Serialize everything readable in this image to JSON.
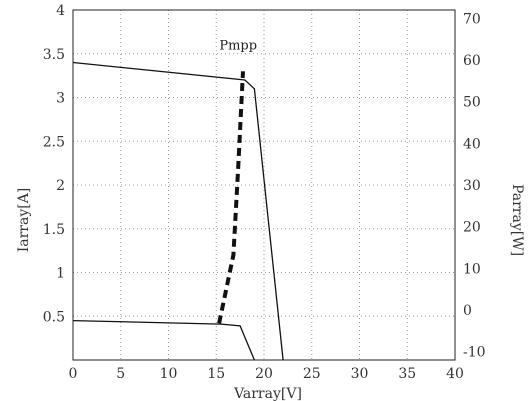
{
  "chart_data": {
    "type": "line",
    "xlabel": "Varray[V]",
    "ylabel_left": "Iarray[A]",
    "ylabel_right": "Parray[W]",
    "xlim": [
      0,
      40
    ],
    "ylim_left": [
      0,
      4
    ],
    "ylim_right": [
      -12,
      72
    ],
    "x_ticks": [
      "0",
      "5",
      "10",
      "15",
      "20",
      "25",
      "30",
      "35",
      "40"
    ],
    "y_left_ticks": [
      {
        "value": 0.5,
        "label": "0.5"
      },
      {
        "value": 1,
        "label": "1"
      },
      {
        "value": 1.5,
        "label": "1.5"
      },
      {
        "value": 2,
        "label": "2"
      },
      {
        "value": 2.5,
        "label": "2.5"
      },
      {
        "value": 3,
        "label": "3"
      },
      {
        "value": 3.5,
        "label": "3.5"
      },
      {
        "value": 4,
        "label": "4"
      }
    ],
    "y_right_ticks": [
      {
        "value": -10,
        "label": "-10"
      },
      {
        "value": 0,
        "label": "0"
      },
      {
        "value": 10,
        "label": "10"
      },
      {
        "value": 20,
        "label": "20"
      },
      {
        "value": 30,
        "label": "30"
      },
      {
        "value": 40,
        "label": "40"
      },
      {
        "value": 50,
        "label": "50"
      },
      {
        "value": 60,
        "label": "60"
      },
      {
        "value": 70,
        "label": "70"
      }
    ],
    "grid": true,
    "series": [
      {
        "axis": "left",
        "style": "solid",
        "points": [
          [
            0,
            3.4
          ],
          [
            18.0,
            3.2
          ],
          [
            19.0,
            3.1
          ],
          [
            22.0,
            0
          ]
        ]
      },
      {
        "axis": "left",
        "style": "solid",
        "points": [
          [
            0,
            0.45
          ],
          [
            15.5,
            0.41
          ],
          [
            17.5,
            0.39
          ],
          [
            19.0,
            0
          ]
        ]
      },
      {
        "axis": "left",
        "style": "dashed",
        "points": [
          [
            15.3,
            0.42
          ],
          [
            16.8,
            1.2
          ],
          [
            17.3,
            2.2
          ],
          [
            17.8,
            3.3
          ]
        ]
      }
    ],
    "annotations": [
      {
        "text": "Pmpp",
        "x": 17.3,
        "y": 3.55
      }
    ]
  }
}
